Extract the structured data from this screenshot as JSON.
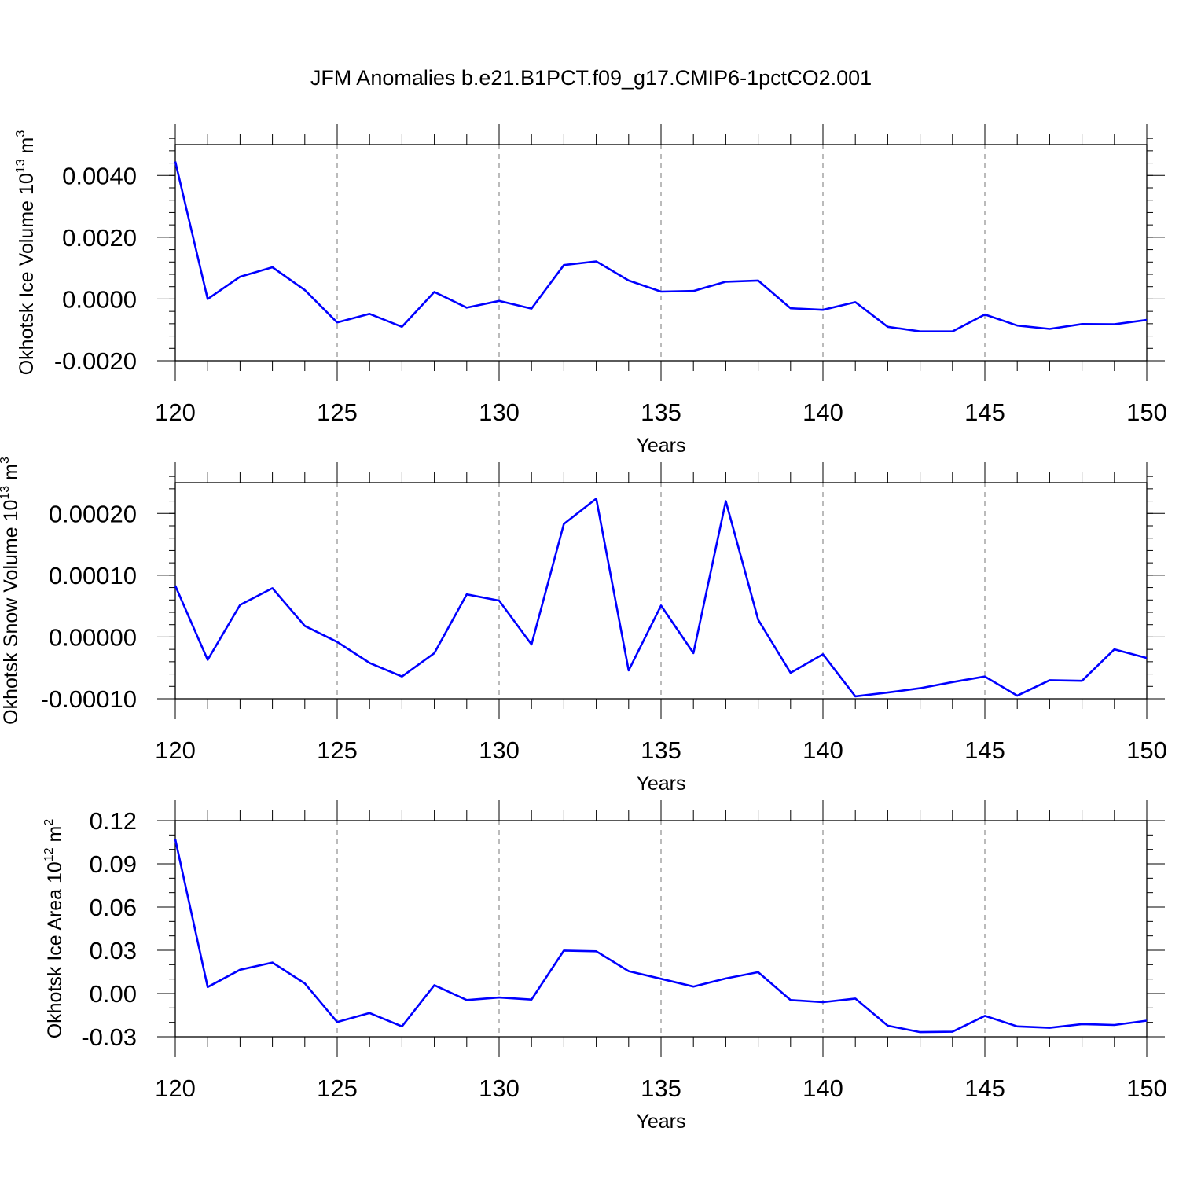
{
  "figure": {
    "title": "JFM Anomalies b.e21.B1PCT.f09_g17.CMIP6-1pctCO2.001"
  },
  "colors": {
    "line": "#0000ff",
    "frame": "#000000",
    "grid": "#777777"
  },
  "chart_data": [
    {
      "type": "line",
      "name": "ice-volume",
      "xlabel": "Years",
      "ylabel": {
        "text": "Okhotsk Ice Volume 10",
        "exp": "13",
        "unit": " m",
        "unit_exp": "3"
      },
      "xlim": [
        120,
        150
      ],
      "ylim": [
        -0.002,
        0.005
      ],
      "x_ticks": [
        120,
        125,
        130,
        135,
        140,
        145,
        150
      ],
      "x_tick_labels": [
        "120",
        "125",
        "130",
        "135",
        "140",
        "145",
        "150"
      ],
      "y_ticks": [
        -0.002,
        0.0,
        0.002,
        0.004
      ],
      "y_tick_labels": [
        "-0.0020",
        "0.0000",
        "0.0020",
        "0.0040"
      ],
      "y_minor_step": 0.0004,
      "grid": "vertical dashed at major x ticks",
      "x": [
        120,
        121,
        122,
        123,
        124,
        125,
        126,
        127,
        128,
        129,
        130,
        131,
        132,
        133,
        134,
        135,
        136,
        137,
        138,
        139,
        140,
        141,
        142,
        143,
        144,
        145,
        146,
        147,
        148,
        149,
        150
      ],
      "values": [
        0.00445,
        0.0,
        0.00072,
        0.00103,
        0.00029,
        -0.00076,
        -0.00048,
        -0.0009,
        0.00023,
        -0.00028,
        -6e-05,
        -0.00031,
        0.0011,
        0.00122,
        0.0006,
        0.00024,
        0.00026,
        0.00056,
        0.0006,
        -0.0003,
        -0.00035,
        -0.0001,
        -0.0009,
        -0.00105,
        -0.00105,
        -0.0005,
        -0.00086,
        -0.00097,
        -0.00081,
        -0.00082,
        -0.00068
      ]
    },
    {
      "type": "line",
      "name": "snow-volume",
      "xlabel": "Years",
      "ylabel": {
        "text": "Okhotsk Snow Volume 10",
        "exp": "13",
        "unit": " m",
        "unit_exp": "3"
      },
      "xlim": [
        120,
        150
      ],
      "ylim": [
        -0.0001,
        0.00025
      ],
      "x_ticks": [
        120,
        125,
        130,
        135,
        140,
        145,
        150
      ],
      "x_tick_labels": [
        "120",
        "125",
        "130",
        "135",
        "140",
        "145",
        "150"
      ],
      "y_ticks": [
        -0.0001,
        0.0,
        0.0001,
        0.0002
      ],
      "y_tick_labels": [
        "-0.00010",
        "0.00000",
        "0.00010",
        "0.00020"
      ],
      "y_minor_step": 2e-05,
      "grid": "vertical dashed at major x ticks",
      "x": [
        120,
        121,
        122,
        123,
        124,
        125,
        126,
        127,
        128,
        129,
        130,
        131,
        132,
        133,
        134,
        135,
        136,
        137,
        138,
        139,
        140,
        141,
        142,
        143,
        144,
        145,
        146,
        147,
        148,
        149,
        150
      ],
      "values": [
        8.3e-05,
        -3.7e-05,
        5.2e-05,
        7.9e-05,
        1.8e-05,
        -8e-06,
        -4.2e-05,
        -6.4e-05,
        -2.6e-05,
        6.9e-05,
        5.9e-05,
        -1.2e-05,
        0.000183,
        0.000224,
        -5.4e-05,
        5.1e-05,
        -2.6e-05,
        0.00022,
        2.8e-05,
        -5.8e-05,
        -2.8e-05,
        -9.6e-05,
        -9e-05,
        -8.3e-05,
        -7.3e-05,
        -6.4e-05,
        -9.5e-05,
        -7e-05,
        -7.1e-05,
        -2e-05,
        -3.4e-05
      ]
    },
    {
      "type": "line",
      "name": "ice-area",
      "xlabel": "Years",
      "ylabel": {
        "text": "Okhotsk Ice Area 10",
        "exp": "12",
        "unit": " m",
        "unit_exp": "2"
      },
      "xlim": [
        120,
        150
      ],
      "ylim": [
        -0.03,
        0.12
      ],
      "x_ticks": [
        120,
        125,
        130,
        135,
        140,
        145,
        150
      ],
      "x_tick_labels": [
        "120",
        "125",
        "130",
        "135",
        "140",
        "145",
        "150"
      ],
      "y_ticks": [
        -0.03,
        0.0,
        0.03,
        0.06,
        0.09,
        0.12
      ],
      "y_tick_labels": [
        "-0.03",
        "0.00",
        "0.03",
        "0.06",
        "0.09",
        "0.12"
      ],
      "y_minor_step": 0.01,
      "grid": "vertical dashed at major x ticks",
      "x": [
        120,
        121,
        122,
        123,
        124,
        125,
        126,
        127,
        128,
        129,
        130,
        131,
        132,
        133,
        134,
        135,
        136,
        137,
        138,
        139,
        140,
        141,
        142,
        143,
        144,
        145,
        146,
        147,
        148,
        149,
        150
      ],
      "values": [
        0.107,
        0.0045,
        0.0165,
        0.0215,
        0.007,
        -0.0198,
        -0.0135,
        -0.0228,
        0.0058,
        -0.0045,
        -0.0028,
        -0.0042,
        0.0298,
        0.0293,
        0.0155,
        0.0102,
        0.0048,
        0.0104,
        0.0148,
        -0.0045,
        -0.006,
        -0.0035,
        -0.0223,
        -0.0268,
        -0.0265,
        -0.0155,
        -0.0228,
        -0.0238,
        -0.0212,
        -0.0218,
        -0.0188
      ]
    }
  ]
}
